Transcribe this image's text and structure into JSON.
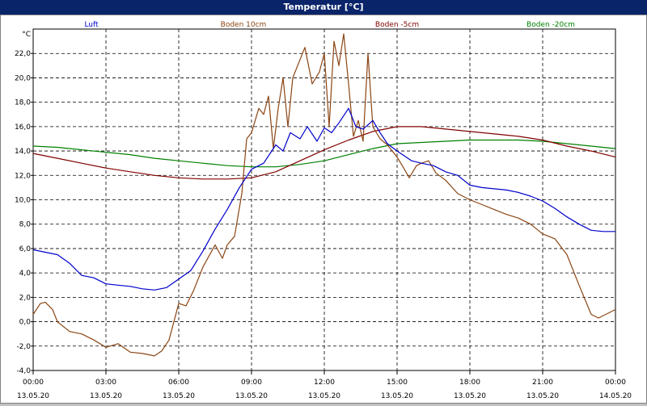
{
  "window": {
    "title": "Temperatur [°C]"
  },
  "chart_data": {
    "type": "line",
    "title": "Temperatur [°C]",
    "ylabel": "°C",
    "xlabel": "",
    "ylim": [
      -4,
      24
    ],
    "xlim": [
      0,
      24
    ],
    "grid": true,
    "legend_position": "top",
    "yticks": [
      -4,
      -2,
      0,
      2,
      4,
      6,
      8,
      10,
      12,
      14,
      16,
      18,
      20,
      22
    ],
    "ytick_labels": [
      "-4,0",
      "-2,0",
      "0,0",
      "2,0",
      "4,0",
      "6,0",
      "8,0",
      "10,0",
      "12,0",
      "14,0",
      "16,0",
      "18,0",
      "20,0",
      "22,0"
    ],
    "xticks": [
      {
        "x": 0,
        "time": "00:00",
        "date": "13.05.20"
      },
      {
        "x": 3,
        "time": "03:00",
        "date": "13.05.20"
      },
      {
        "x": 6,
        "time": "06:00",
        "date": "13.05.20"
      },
      {
        "x": 9,
        "time": "09:00",
        "date": "13.05.20"
      },
      {
        "x": 12,
        "time": "12:00",
        "date": "13.05.20"
      },
      {
        "x": 15,
        "time": "15:00",
        "date": "13.05.20"
      },
      {
        "x": 18,
        "time": "18:00",
        "date": "13.05.20"
      },
      {
        "x": 21,
        "time": "21:00",
        "date": "13.05.20"
      },
      {
        "x": 24,
        "time": "00:00",
        "date": "14.05.20"
      }
    ],
    "series": [
      {
        "name": "Luft",
        "color": "#0000cc",
        "points": [
          [
            0,
            5.9
          ],
          [
            0.5,
            5.7
          ],
          [
            1,
            5.5
          ],
          [
            1.5,
            4.8
          ],
          [
            2,
            3.8
          ],
          [
            2.5,
            3.6
          ],
          [
            3,
            3.1
          ],
          [
            3.5,
            3.0
          ],
          [
            4,
            2.9
          ],
          [
            4.5,
            2.7
          ],
          [
            5,
            2.6
          ],
          [
            5.5,
            2.8
          ],
          [
            6,
            3.5
          ],
          [
            6.5,
            4.2
          ],
          [
            7,
            5.8
          ],
          [
            7.5,
            7.6
          ],
          [
            8,
            9.2
          ],
          [
            8.5,
            11.0
          ],
          [
            9,
            12.5
          ],
          [
            9.5,
            13.0
          ],
          [
            10,
            14.5
          ],
          [
            10.3,
            14.0
          ],
          [
            10.6,
            15.5
          ],
          [
            11,
            15.0
          ],
          [
            11.3,
            16.0
          ],
          [
            11.7,
            14.8
          ],
          [
            12,
            15.9
          ],
          [
            12.3,
            15.5
          ],
          [
            12.6,
            16.3
          ],
          [
            13,
            17.5
          ],
          [
            13.3,
            16.0
          ],
          [
            13.6,
            15.8
          ],
          [
            14,
            16.5
          ],
          [
            14.3,
            15.5
          ],
          [
            14.6,
            14.6
          ],
          [
            15,
            14.0
          ],
          [
            15.3,
            13.6
          ],
          [
            15.6,
            13.2
          ],
          [
            16,
            13.0
          ],
          [
            16.5,
            12.8
          ],
          [
            17,
            12.3
          ],
          [
            17.5,
            12.0
          ],
          [
            18,
            11.2
          ],
          [
            18.5,
            11.0
          ],
          [
            19,
            10.9
          ],
          [
            19.5,
            10.8
          ],
          [
            20,
            10.6
          ],
          [
            20.5,
            10.3
          ],
          [
            21,
            9.9
          ],
          [
            21.5,
            9.3
          ],
          [
            22,
            8.6
          ],
          [
            22.5,
            8.0
          ],
          [
            23,
            7.5
          ],
          [
            23.5,
            7.4
          ],
          [
            24,
            7.4
          ]
        ]
      },
      {
        "name": "Boden 10cm",
        "color": "#8b4513",
        "points": [
          [
            0,
            0.6
          ],
          [
            0.3,
            1.5
          ],
          [
            0.5,
            1.6
          ],
          [
            0.8,
            1.0
          ],
          [
            1,
            0.0
          ],
          [
            1.5,
            -0.8
          ],
          [
            2,
            -1.0
          ],
          [
            2.5,
            -1.5
          ],
          [
            3,
            -2.1
          ],
          [
            3.5,
            -1.8
          ],
          [
            4,
            -2.5
          ],
          [
            4.5,
            -2.6
          ],
          [
            5,
            -2.8
          ],
          [
            5.3,
            -2.4
          ],
          [
            5.6,
            -1.5
          ],
          [
            6,
            1.5
          ],
          [
            6.3,
            1.3
          ],
          [
            6.6,
            2.5
          ],
          [
            7,
            4.5
          ],
          [
            7.5,
            6.3
          ],
          [
            7.8,
            5.2
          ],
          [
            8,
            6.3
          ],
          [
            8.3,
            7.0
          ],
          [
            8.6,
            10.5
          ],
          [
            8.8,
            15.0
          ],
          [
            9,
            15.5
          ],
          [
            9.3,
            17.5
          ],
          [
            9.5,
            17.0
          ],
          [
            9.7,
            18.5
          ],
          [
            9.9,
            14.2
          ],
          [
            10.1,
            17.5
          ],
          [
            10.3,
            20.0
          ],
          [
            10.5,
            16.0
          ],
          [
            10.7,
            20.0
          ],
          [
            11,
            21.5
          ],
          [
            11.2,
            22.5
          ],
          [
            11.5,
            19.5
          ],
          [
            11.8,
            20.5
          ],
          [
            12,
            22.0
          ],
          [
            12.2,
            16.0
          ],
          [
            12.4,
            23.0
          ],
          [
            12.6,
            21.0
          ],
          [
            12.8,
            23.6
          ],
          [
            13,
            19.5
          ],
          [
            13.2,
            15.2
          ],
          [
            13.4,
            16.5
          ],
          [
            13.6,
            14.8
          ],
          [
            13.8,
            22.0
          ],
          [
            14,
            16.0
          ],
          [
            14.3,
            15.0
          ],
          [
            14.6,
            14.5
          ],
          [
            15,
            13.5
          ],
          [
            15.3,
            12.5
          ],
          [
            15.5,
            11.8
          ],
          [
            15.8,
            12.8
          ],
          [
            16,
            13.0
          ],
          [
            16.3,
            13.2
          ],
          [
            16.6,
            12.2
          ],
          [
            17,
            11.6
          ],
          [
            17.5,
            10.5
          ],
          [
            18,
            10.0
          ],
          [
            18.5,
            9.6
          ],
          [
            19,
            9.2
          ],
          [
            19.5,
            8.8
          ],
          [
            20,
            8.5
          ],
          [
            20.5,
            8.0
          ],
          [
            21,
            7.2
          ],
          [
            21.5,
            6.8
          ],
          [
            22,
            5.5
          ],
          [
            22.5,
            3.0
          ],
          [
            23,
            0.6
          ],
          [
            23.3,
            0.3
          ],
          [
            23.6,
            0.6
          ],
          [
            24,
            1.0
          ]
        ]
      },
      {
        "name": "Boden -5cm",
        "color": "#800000",
        "points": [
          [
            0,
            13.8
          ],
          [
            1,
            13.4
          ],
          [
            2,
            13.0
          ],
          [
            3,
            12.6
          ],
          [
            4,
            12.3
          ],
          [
            5,
            12.0
          ],
          [
            6,
            11.8
          ],
          [
            7,
            11.7
          ],
          [
            8,
            11.7
          ],
          [
            9,
            11.8
          ],
          [
            10,
            12.3
          ],
          [
            11,
            13.2
          ],
          [
            12,
            14.1
          ],
          [
            13,
            14.9
          ],
          [
            14,
            15.6
          ],
          [
            15,
            16.0
          ],
          [
            16,
            16.0
          ],
          [
            17,
            15.8
          ],
          [
            18,
            15.6
          ],
          [
            19,
            15.4
          ],
          [
            20,
            15.2
          ],
          [
            21,
            14.9
          ],
          [
            22,
            14.4
          ],
          [
            23,
            14.0
          ],
          [
            24,
            13.5
          ]
        ]
      },
      {
        "name": "Boden -20cm",
        "color": "#008000",
        "points": [
          [
            0,
            14.4
          ],
          [
            1,
            14.3
          ],
          [
            2,
            14.1
          ],
          [
            3,
            13.9
          ],
          [
            4,
            13.7
          ],
          [
            5,
            13.4
          ],
          [
            6,
            13.2
          ],
          [
            7,
            13.0
          ],
          [
            8,
            12.8
          ],
          [
            9,
            12.7
          ],
          [
            10,
            12.7
          ],
          [
            11,
            12.9
          ],
          [
            12,
            13.2
          ],
          [
            13,
            13.7
          ],
          [
            14,
            14.2
          ],
          [
            15,
            14.6
          ],
          [
            16,
            14.7
          ],
          [
            17,
            14.8
          ],
          [
            18,
            14.9
          ],
          [
            19,
            14.9
          ],
          [
            20,
            14.9
          ],
          [
            21,
            14.8
          ],
          [
            22,
            14.6
          ],
          [
            23,
            14.4
          ],
          [
            24,
            14.2
          ]
        ]
      }
    ]
  }
}
